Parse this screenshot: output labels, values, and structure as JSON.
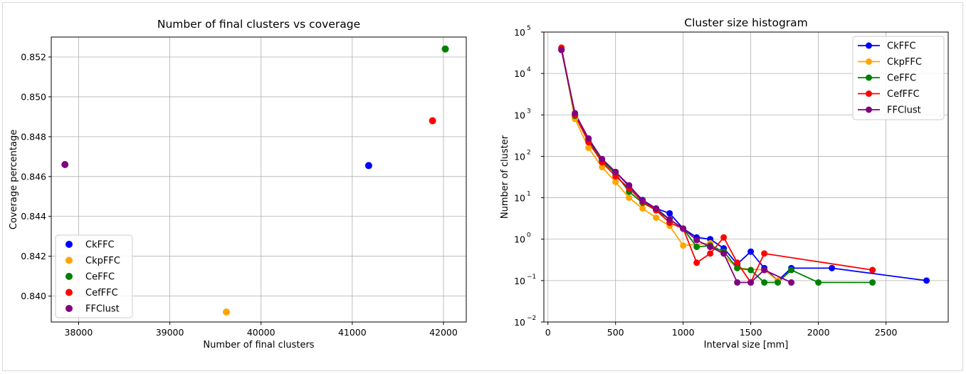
{
  "colors": {
    "CkFFC": "#0000ff",
    "CkpFFC": "#ffa500",
    "CeFFC": "#008000",
    "CefFFC": "#ff0000",
    "FFClust": "#800080",
    "grid": "#b0b0b0",
    "axis": "#000000"
  },
  "chart_data": [
    {
      "type": "scatter",
      "title": "Number of final clusters vs coverage",
      "xlabel": "Number of final clusters",
      "ylabel": "Coverage percentage",
      "xlim": [
        37700,
        42250
      ],
      "ylim": [
        0.8387,
        0.853
      ],
      "xticks": [
        38000,
        39000,
        40000,
        41000,
        42000
      ],
      "xtick_labels": [
        "38000",
        "39000",
        "40000",
        "41000",
        "42000"
      ],
      "yticks": [
        0.84,
        0.842,
        0.844,
        0.846,
        0.848,
        0.85,
        0.852
      ],
      "ytick_labels": [
        "0.840",
        "0.842",
        "0.844",
        "0.846",
        "0.848",
        "0.850",
        "0.852"
      ],
      "grid": true,
      "legend_position": "lower-left",
      "series": [
        {
          "name": "CkFFC",
          "points": [
            [
              41180,
              0.84655
            ]
          ]
        },
        {
          "name": "CkpFFC",
          "points": [
            [
              39620,
              0.8392
            ]
          ]
        },
        {
          "name": "CeFFC",
          "points": [
            [
              42020,
              0.8524
            ]
          ]
        },
        {
          "name": "CefFFC",
          "points": [
            [
              41880,
              0.8488
            ]
          ]
        },
        {
          "name": "FFClust",
          "points": [
            [
              37850,
              0.8466
            ]
          ]
        }
      ]
    },
    {
      "type": "line",
      "title": "Cluster size histogram",
      "xlabel": "Interval size [mm]",
      "ylabel": "Number of cluster",
      "xlim": [
        -30,
        2960
      ],
      "ylim_exp": [
        -2,
        5
      ],
      "yscale": "log",
      "xticks": [
        0,
        500,
        1000,
        1500,
        2000,
        2500
      ],
      "xtick_labels": [
        "0",
        "500",
        "1000",
        "1500",
        "2000",
        "2500"
      ],
      "ytick_exponents": [
        -2,
        -1,
        0,
        1,
        2,
        3,
        4,
        5
      ],
      "ytick_base": "10",
      "ytick_labels_exp": [
        "−2",
        "−1",
        "0",
        "1",
        "2",
        "3",
        "4",
        "5"
      ],
      "grid": true,
      "legend_position": "top-right",
      "series": [
        {
          "name": "CkFFC",
          "x": [
            100,
            200,
            300,
            400,
            500,
            600,
            700,
            800,
            900,
            1000,
            1100,
            1200,
            1300,
            1400,
            1500,
            1600,
            1700,
            1800,
            2100,
            2800
          ],
          "y": [
            37000,
            1000,
            260,
            85,
            42,
            19,
            8.8,
            5.5,
            4.2,
            1.8,
            1.1,
            1.0,
            0.6,
            0.25,
            0.5,
            0.2,
            0.1,
            0.2,
            0.2,
            0.1
          ]
        },
        {
          "name": "CkpFFC",
          "x": [
            100,
            200,
            300,
            400,
            500,
            600,
            700,
            800,
            900,
            1000,
            1200,
            1400,
            1600,
            1700
          ],
          "y": [
            40000,
            800,
            160,
            55,
            24,
            10,
            5.5,
            3.3,
            2.1,
            0.7,
            0.8,
            0.2,
            0.18,
            0.1
          ]
        },
        {
          "name": "CeFFC",
          "x": [
            100,
            200,
            300,
            400,
            500,
            600,
            700,
            800,
            900,
            1000,
            1100,
            1200,
            1300,
            1400,
            1500,
            1600,
            1700,
            1800,
            2000,
            2400
          ],
          "y": [
            38000,
            950,
            230,
            78,
            38,
            14,
            7.5,
            5.0,
            3.0,
            1.8,
            0.65,
            0.7,
            0.5,
            0.2,
            0.18,
            0.09,
            0.09,
            0.18,
            0.09,
            0.09
          ]
        },
        {
          "name": "CefFFC",
          "x": [
            100,
            200,
            300,
            400,
            500,
            600,
            700,
            800,
            900,
            1000,
            1100,
            1200,
            1300,
            1400,
            1500,
            1600,
            2400
          ],
          "y": [
            42000,
            1000,
            220,
            72,
            33,
            17,
            8.0,
            5.0,
            2.5,
            1.8,
            0.27,
            0.45,
            1.1,
            0.27,
            0.09,
            0.45,
            0.18
          ]
        },
        {
          "name": "FFClust",
          "x": [
            100,
            200,
            300,
            400,
            500,
            600,
            700,
            800,
            900,
            1000,
            1100,
            1200,
            1300,
            1400,
            1500,
            1600,
            1800
          ],
          "y": [
            37000,
            1100,
            270,
            86,
            42,
            20,
            8.5,
            5.5,
            3.0,
            1.8,
            0.95,
            0.65,
            0.45,
            0.09,
            0.09,
            0.18,
            0.09
          ]
        }
      ]
    }
  ]
}
